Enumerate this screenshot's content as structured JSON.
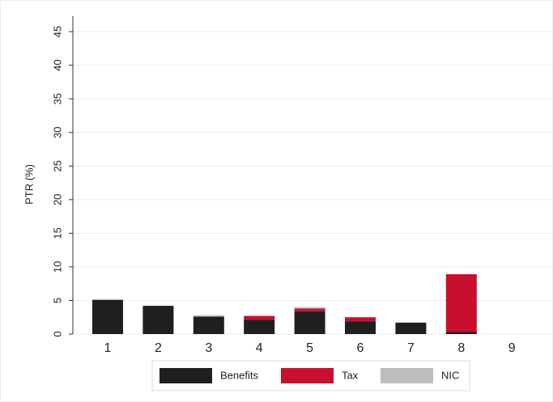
{
  "chart_data": {
    "type": "stacked-bar",
    "y_label": "PTR (%)",
    "categories": [
      "1",
      "2",
      "3",
      "4",
      "5",
      "6",
      "7",
      "8",
      "9"
    ],
    "series": [
      {
        "name": "Benefits",
        "color": "#1f1f1f",
        "values": [
          5.1,
          4.2,
          2.6,
          2.1,
          3.4,
          1.9,
          1.7,
          0.3,
          0
        ]
      },
      {
        "name": "Tax",
        "color": "#c8102e",
        "values": [
          0,
          0,
          0,
          0.6,
          0.4,
          0.6,
          0,
          8.6,
          0
        ]
      },
      {
        "name": "NIC",
        "color": "#bdbdbd",
        "values": [
          0,
          0,
          0.2,
          0,
          0.2,
          0,
          0,
          0,
          0
        ]
      }
    ],
    "ylim": [
      0,
      47.3
    ],
    "yticks": [
      0,
      5,
      10,
      15,
      20,
      25,
      30,
      35,
      40,
      45
    ],
    "grid": true
  }
}
